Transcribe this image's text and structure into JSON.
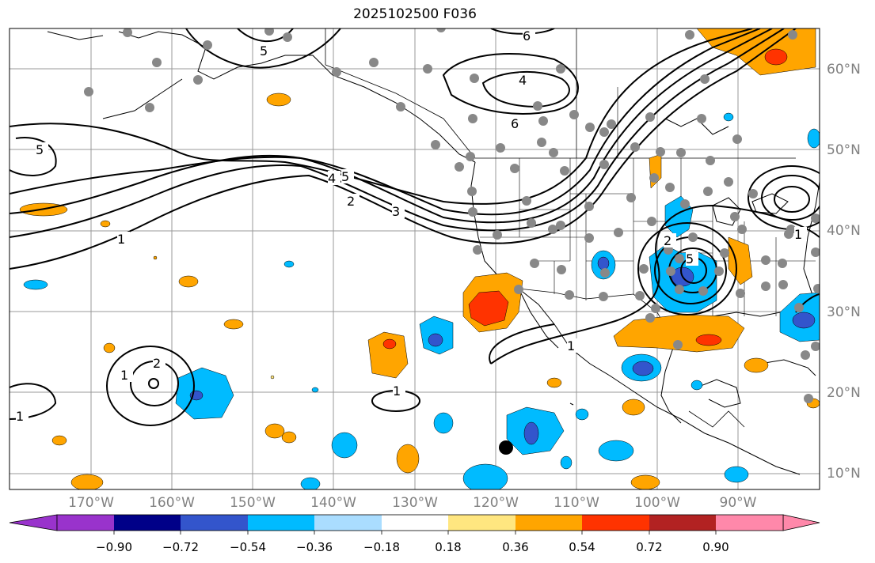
{
  "title": "2025102500 F036",
  "lon_labels": [
    "170°W",
    "160°W",
    "150°W",
    "140°W",
    "130°W",
    "120°W",
    "110°W",
    "100°W",
    "90°W"
  ],
  "lat_labels": [
    "60°N",
    "50°N",
    "40°N",
    "30°N",
    "20°N",
    "10°N"
  ],
  "colorbar": {
    "ticks": [
      "−0.90",
      "−0.72",
      "−0.54",
      "−0.36",
      "−0.18",
      "0.18",
      "0.36",
      "0.54",
      "0.72",
      "0.90"
    ],
    "colors": [
      "#9933cc",
      "#000088",
      "#3355cc",
      "#00bbff",
      "#aaddff",
      "#ffffff",
      "#ffe680",
      "#ffa500",
      "#ff3300",
      "#b22222",
      "#ff88aa"
    ]
  },
  "contour_labels": [
    "5",
    "6",
    "4",
    "6",
    "5",
    "4",
    "5",
    "2",
    "3",
    "1",
    "1",
    "2",
    "1",
    "1",
    "1",
    "2",
    "5",
    "1"
  ],
  "palette": {
    "land": "#ffffff",
    "ocean": "#ffffff",
    "grid": "#999999",
    "station": "#888888"
  }
}
